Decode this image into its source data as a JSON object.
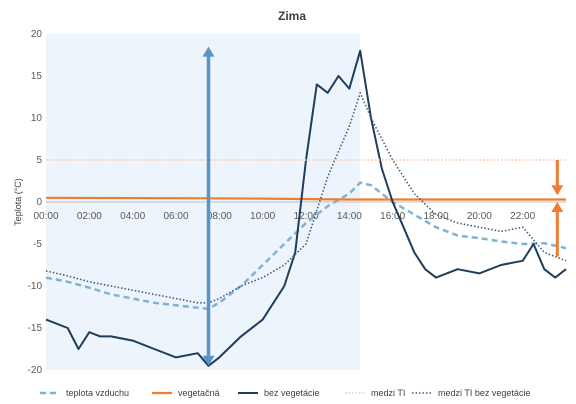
{
  "chart_data": {
    "type": "line",
    "title": "Zima",
    "ylabel": "Teplota (°C)",
    "xlabel": "",
    "ylim": [
      -20,
      20
    ],
    "xlim": [
      0,
      24
    ],
    "y_ticks": [
      20,
      15,
      10,
      5,
      0,
      -5,
      -10,
      -15,
      -20
    ],
    "x_ticks": [
      "00:00",
      "02:00",
      "04:00",
      "06:00",
      "08:00",
      "10:00",
      "12:00",
      "14:00",
      "16:00",
      "18:00",
      "20:00",
      "22:00"
    ],
    "grid": false,
    "legend_position": "bottom",
    "shaded_region": {
      "x_start": 0,
      "x_end": 14.5,
      "color": "#eef4fb"
    },
    "annotations": [
      {
        "type": "double-arrow",
        "x": 7.5,
        "y_from": 18.5,
        "y_to": -19.5,
        "color": "#5b93c4"
      },
      {
        "type": "arrow-down",
        "x": 23.6,
        "y_from": 5,
        "y_to": 0.8,
        "color": "#ed7d31"
      },
      {
        "type": "arrow-up",
        "x": 23.6,
        "y_from": -6.5,
        "y_to": 0,
        "color": "#ed7d31"
      }
    ],
    "series": [
      {
        "name": "teplota vzduchu",
        "color": "#7fb3d5",
        "style": "dashed",
        "x": [
          0,
          1,
          2,
          3,
          4,
          5,
          6,
          7,
          7.5,
          8,
          9,
          10,
          11,
          12,
          12.5,
          13,
          14,
          14.5,
          15,
          15.5,
          16,
          17,
          18,
          19,
          20,
          21,
          22,
          23,
          24
        ],
        "y": [
          -9,
          -9.5,
          -10.2,
          -11,
          -11.5,
          -12,
          -12.3,
          -12.6,
          -12.7,
          -12,
          -10,
          -7.5,
          -5,
          -2.5,
          -1.5,
          -0.5,
          1,
          2.3,
          2,
          1,
          0,
          -1.5,
          -3,
          -4,
          -4.3,
          -4.7,
          -5,
          -4.9,
          -5.5
        ]
      },
      {
        "name": "vegetačná",
        "color": "#ed7d31",
        "style": "solid",
        "x": [
          0,
          6,
          10,
          14,
          18,
          24
        ],
        "y": [
          0.5,
          0.45,
          0.4,
          0.3,
          0.3,
          0.3
        ]
      },
      {
        "name": "bez vegetácie",
        "color": "#1f3d5c",
        "style": "solid",
        "x": [
          0,
          1,
          1.5,
          2,
          2.5,
          3,
          4,
          5,
          6,
          7,
          7.5,
          8,
          9,
          10,
          11,
          11.5,
          12,
          12.5,
          13,
          13.5,
          14,
          14.5,
          15,
          15.5,
          16,
          16.5,
          17,
          17.5,
          18,
          19,
          20,
          21,
          22,
          22.5,
          23,
          23.5,
          24
        ],
        "y": [
          -14,
          -15,
          -17.5,
          -15.5,
          -16,
          -16,
          -16.5,
          -17.5,
          -18.5,
          -18,
          -19.5,
          -18.5,
          -16,
          -14,
          -10,
          -6,
          5,
          14,
          13,
          15,
          13.5,
          18,
          10,
          4,
          0,
          -3,
          -6,
          -8,
          -9,
          -8,
          -8.5,
          -7.5,
          -7,
          -5,
          -8,
          -9,
          -8
        ]
      },
      {
        "name": "medzi TI",
        "color": "#f4c7a5",
        "style": "dotted",
        "x": [
          0,
          24
        ],
        "y": [
          5,
          5
        ]
      },
      {
        "name": "medzi TI bez vegetácie",
        "color": "#3a5e80",
        "style": "dotted",
        "x": [
          0,
          1,
          2,
          3,
          4,
          5,
          6,
          7,
          7.5,
          8,
          9,
          10,
          11,
          12,
          13,
          14,
          14.5,
          15,
          16,
          17,
          18,
          19,
          20,
          21,
          22,
          23,
          24
        ],
        "y": [
          -8.2,
          -8.8,
          -9.5,
          -10,
          -10.5,
          -11,
          -11.5,
          -12,
          -12,
          -11.5,
          -10,
          -9,
          -7.5,
          -5,
          3,
          9,
          13,
          10,
          5,
          1,
          -1.5,
          -2.5,
          -3,
          -3.5,
          -3,
          -6,
          -7
        ]
      }
    ]
  }
}
